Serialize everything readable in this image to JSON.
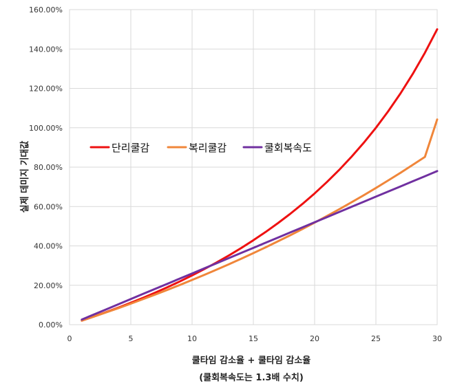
{
  "chart_data": {
    "type": "line",
    "title": "",
    "xlabel": "쿨타임 감소율 + 쿨타임 감소율",
    "xlabel_sub": "(쿨회복속도는 1.3배 수치)",
    "ylabel": "실제 데미지 기대값",
    "xlim": [
      0,
      30
    ],
    "ylim": [
      0,
      1.6
    ],
    "x_ticks": [
      "0",
      "5",
      "10",
      "15",
      "20",
      "25",
      "30"
    ],
    "y_ticks": [
      "0.00%",
      "20.00%",
      "40.00%",
      "60.00%",
      "80.00%",
      "100.00%",
      "120.00%",
      "140.00%",
      "160.00%"
    ],
    "grid": true,
    "legend_position": "middle-left",
    "x": [
      1,
      2,
      3,
      4,
      5,
      6,
      7,
      8,
      9,
      10,
      11,
      12,
      13,
      14,
      15,
      16,
      17,
      18,
      19,
      20,
      21,
      22,
      23,
      24,
      25,
      26,
      27,
      28,
      29,
      30
    ],
    "series": [
      {
        "name": "단리쿨감",
        "color": "#ee1111",
        "values": [
          0.0204,
          0.0417,
          0.0638,
          0.087,
          0.1111,
          0.1364,
          0.1628,
          0.1905,
          0.2195,
          0.25,
          0.2821,
          0.3158,
          0.3514,
          0.3889,
          0.4286,
          0.4706,
          0.5152,
          0.5625,
          0.6129,
          0.6667,
          0.7241,
          0.7857,
          0.8519,
          0.9231,
          1.0,
          1.0833,
          1.1739,
          1.2727,
          1.381,
          1.5
        ]
      },
      {
        "name": "복리쿨감",
        "color": "#f0863a",
        "values": [
          0.0203,
          0.0411,
          0.0624,
          0.0842,
          0.1066,
          0.1295,
          0.153,
          0.177,
          0.2017,
          0.227,
          0.2529,
          0.2795,
          0.3068,
          0.3347,
          0.3634,
          0.3928,
          0.423,
          0.4539,
          0.4856,
          0.5182,
          0.5516,
          0.5859,
          0.621,
          0.6571,
          0.6941,
          0.7321,
          0.7711,
          0.8111,
          0.8521,
          1.042
        ]
      },
      {
        "name": "쿨회복속도",
        "color": "#7030a0",
        "values": [
          0.026,
          0.052,
          0.078,
          0.104,
          0.13,
          0.156,
          0.182,
          0.208,
          0.234,
          0.26,
          0.286,
          0.312,
          0.338,
          0.364,
          0.39,
          0.416,
          0.442,
          0.468,
          0.494,
          0.52,
          0.546,
          0.572,
          0.598,
          0.624,
          0.65,
          0.676,
          0.702,
          0.728,
          0.754,
          0.78
        ]
      }
    ]
  }
}
